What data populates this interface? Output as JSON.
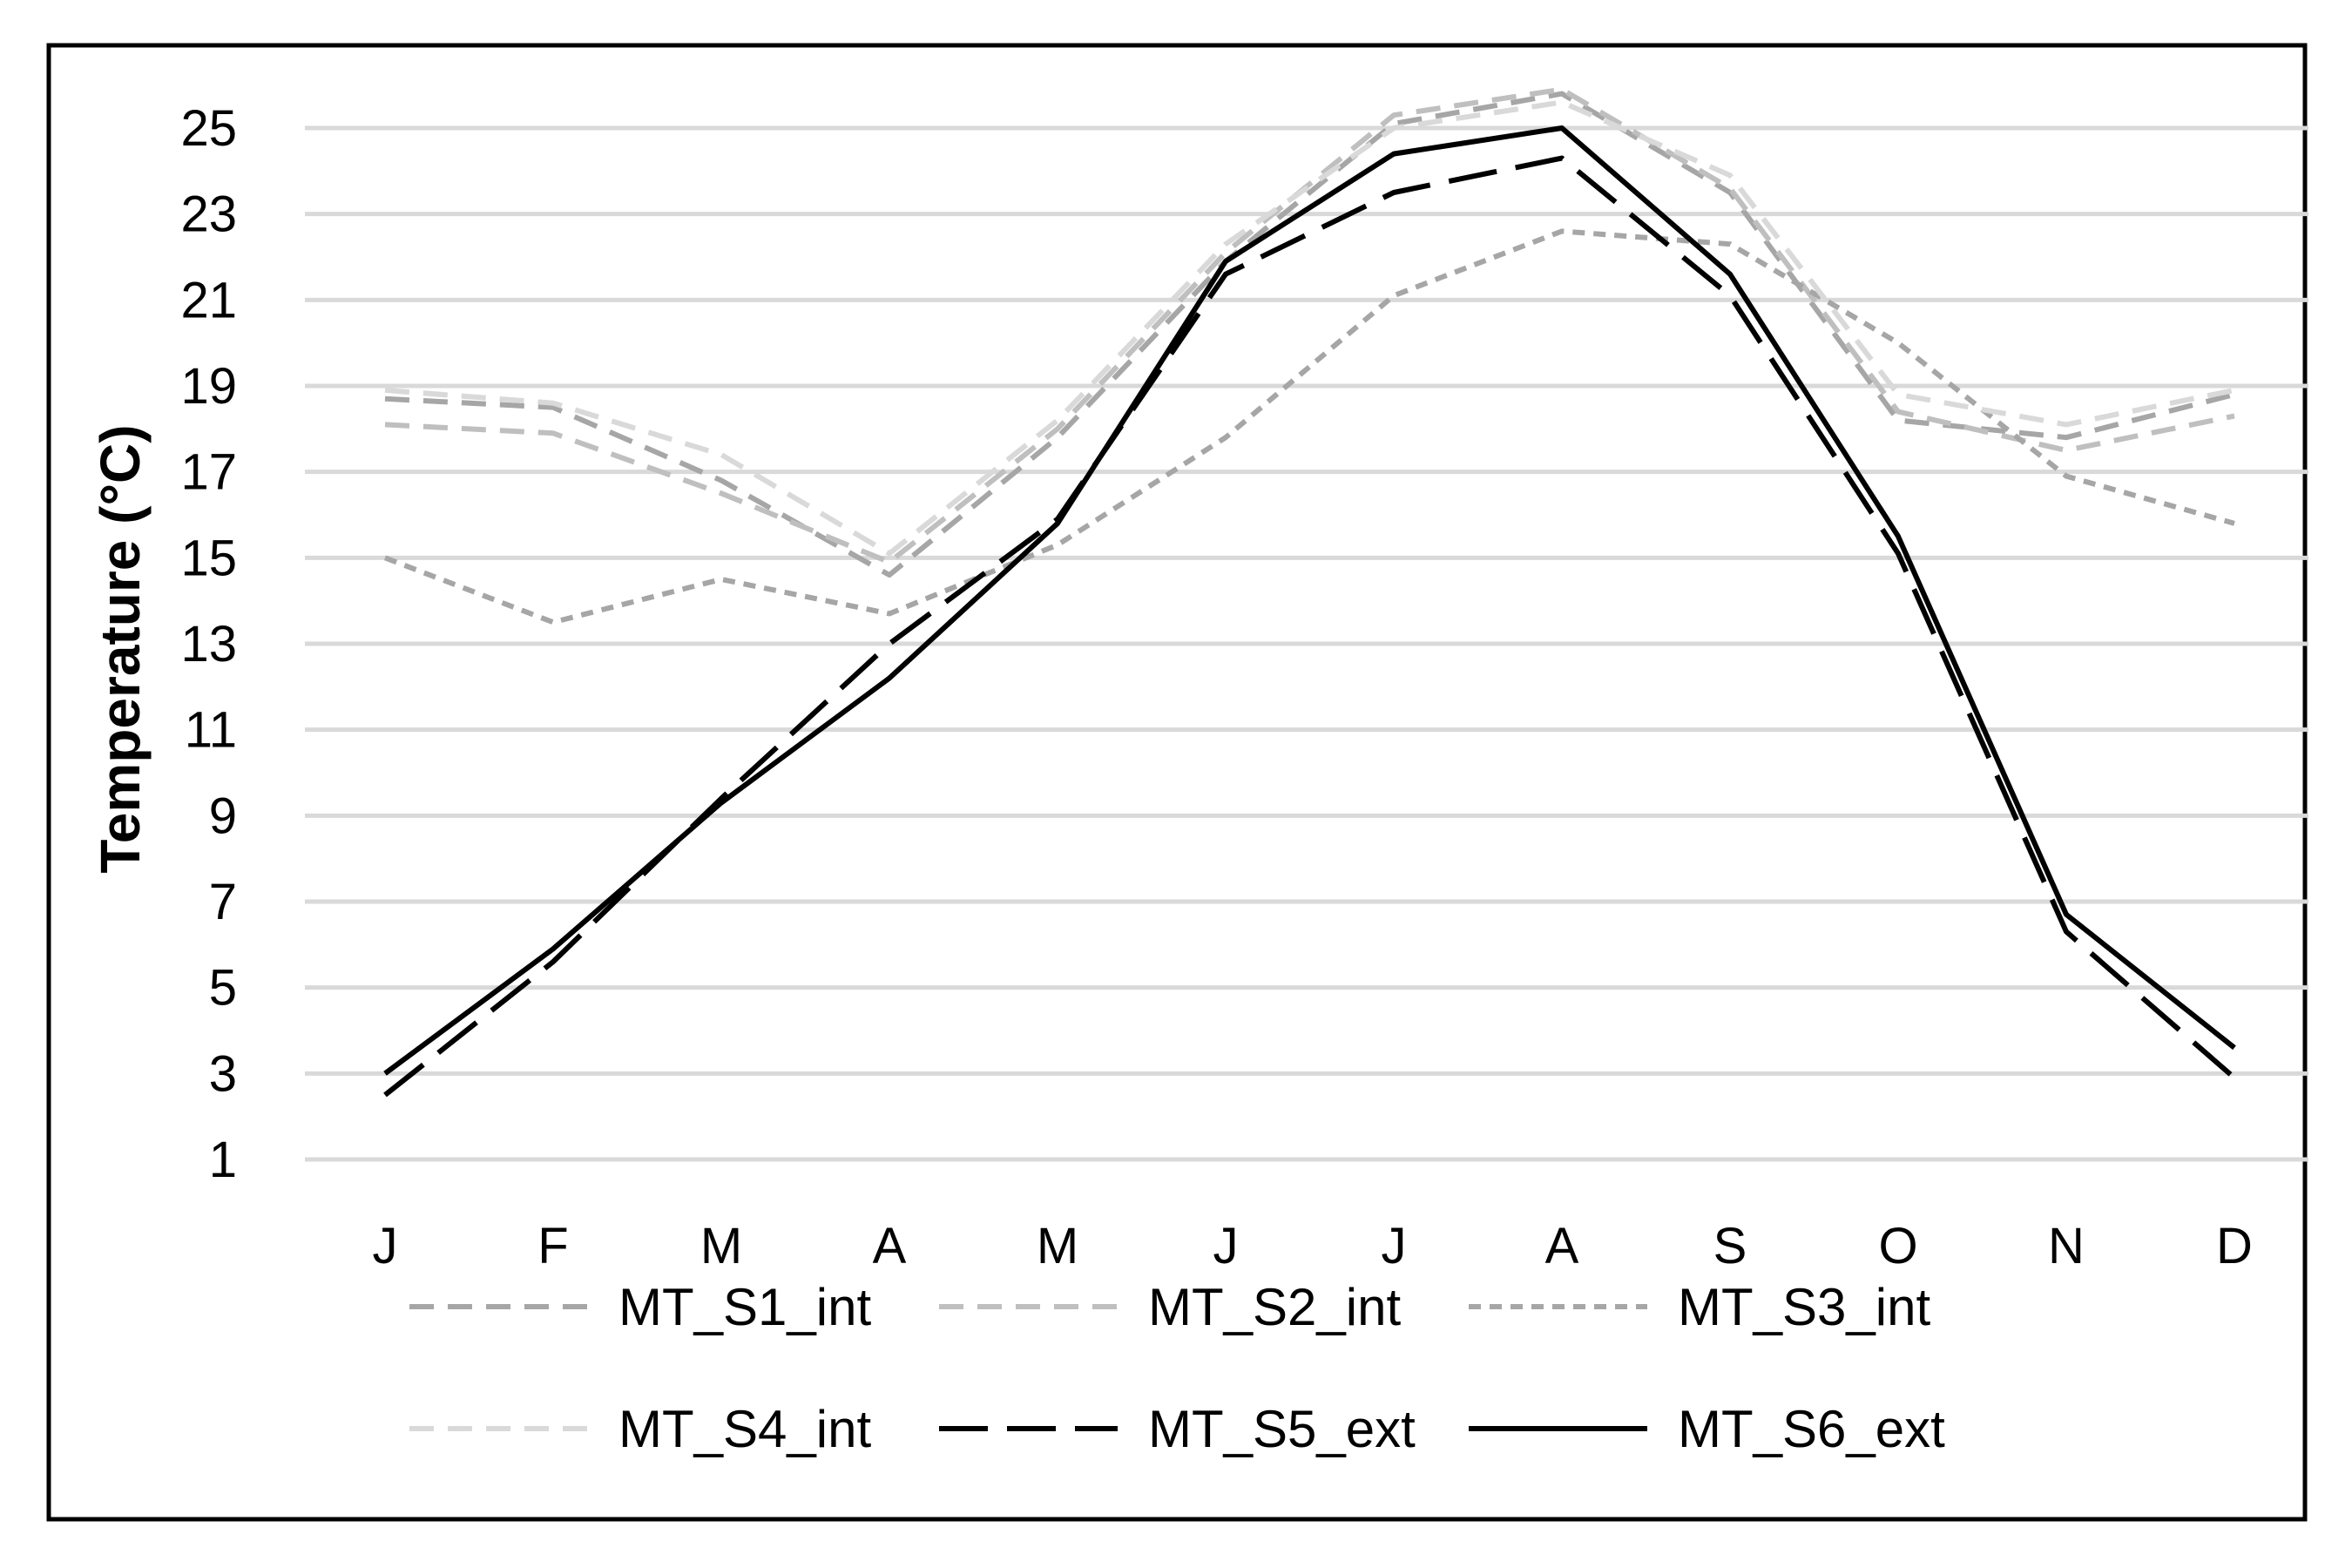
{
  "chart_data": {
    "type": "line",
    "title": "",
    "xlabel": "",
    "ylabel": "Temperature (°C)",
    "categories": [
      "J",
      "F",
      "M",
      "A",
      "M",
      "J",
      "J",
      "A",
      "S",
      "O",
      "N",
      "D"
    ],
    "ylim": [
      1,
      25
    ],
    "yticks": [
      1,
      3,
      5,
      7,
      9,
      11,
      13,
      15,
      17,
      19,
      21,
      23,
      25
    ],
    "grid": "horizontal",
    "legend_position": "bottom",
    "series": [
      {
        "name": "MT_S1_int",
        "color": "#a6a6a6",
        "dash": "medium-dash",
        "values": [
          18.7,
          18.5,
          16.8,
          14.6,
          17.8,
          21.9,
          25.1,
          25.8,
          23.5,
          18.2,
          17.8,
          18.8
        ]
      },
      {
        "name": "MT_S2_int",
        "color": "#bfbfbf",
        "dash": "medium-dash",
        "values": [
          18.1,
          17.9,
          16.5,
          14.9,
          18.0,
          22.1,
          25.3,
          25.9,
          23.6,
          18.4,
          17.5,
          18.3
        ]
      },
      {
        "name": "MT_S3_int",
        "color": "#a6a6a6",
        "dash": "short-dash",
        "values": [
          15.0,
          13.5,
          14.5,
          13.7,
          15.3,
          17.8,
          21.1,
          22.6,
          22.3,
          20.0,
          16.9,
          15.8
        ]
      },
      {
        "name": "MT_S4_int",
        "color": "#d9d9d9",
        "dash": "medium-dash",
        "values": [
          18.9,
          18.6,
          17.4,
          15.1,
          18.2,
          22.3,
          25.0,
          25.6,
          23.9,
          18.8,
          18.1,
          18.9
        ]
      },
      {
        "name": "MT_S5_ext",
        "color": "#000000",
        "dash": "long-dash",
        "values": [
          2.5,
          5.6,
          9.4,
          13.0,
          15.9,
          21.6,
          23.5,
          24.3,
          21.1,
          15.1,
          6.3,
          2.9
        ]
      },
      {
        "name": "MT_S6_ext",
        "color": "#000000",
        "dash": "solid",
        "values": [
          3.0,
          5.9,
          9.3,
          12.2,
          15.8,
          21.9,
          24.4,
          25.0,
          21.6,
          15.5,
          6.7,
          3.6
        ]
      }
    ]
  }
}
